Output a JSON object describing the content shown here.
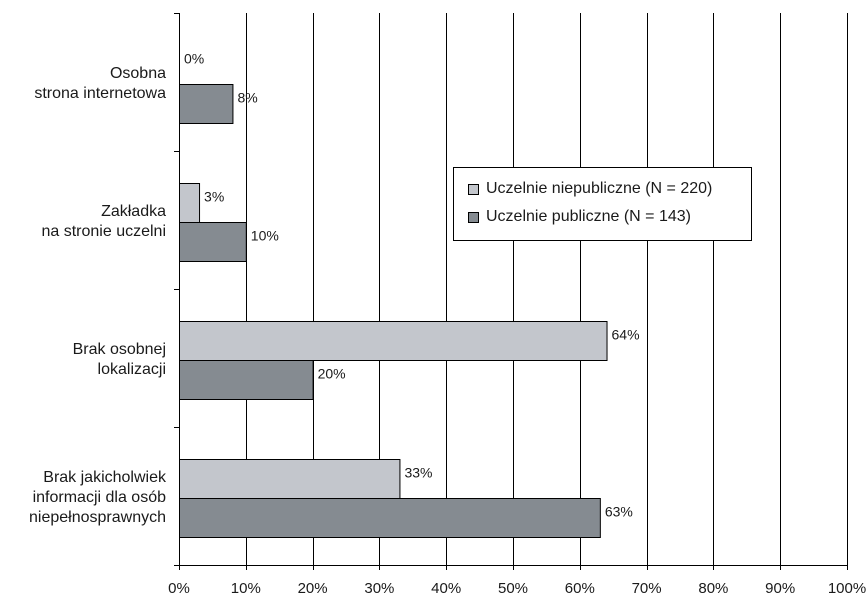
{
  "chart_data": {
    "type": "bar",
    "orientation": "horizontal",
    "title": "",
    "xlabel": "",
    "ylabel": "",
    "xlim": [
      0,
      100
    ],
    "x_ticks": [
      "0%",
      "10%",
      "20%",
      "30%",
      "40%",
      "50%",
      "60%",
      "70%",
      "80%",
      "90%",
      "100%"
    ],
    "grid": true,
    "legend_position": "right-upper",
    "categories": [
      [
        "Osobna",
        "strona internetowa"
      ],
      [
        "Zakładka",
        "na stronie uczelni"
      ],
      [
        "Brak osobnej",
        "lokalizacji"
      ],
      [
        "Brak jakicholwiek",
        "informacji dla osób",
        "niepełnosprawnych"
      ]
    ],
    "series": [
      {
        "name": "Uczelnie niepubliczne (N = 220)",
        "color": "#c3c6cc",
        "values": [
          0,
          3,
          64,
          33
        ],
        "labels": [
          "0%",
          "3%",
          "64%",
          "33%"
        ]
      },
      {
        "name": "Uczelnie publiczne (N = 143)",
        "color": "#858b91",
        "values": [
          8,
          10,
          20,
          63
        ],
        "labels": [
          "8%",
          "10%",
          "20%",
          "63%"
        ]
      }
    ]
  }
}
